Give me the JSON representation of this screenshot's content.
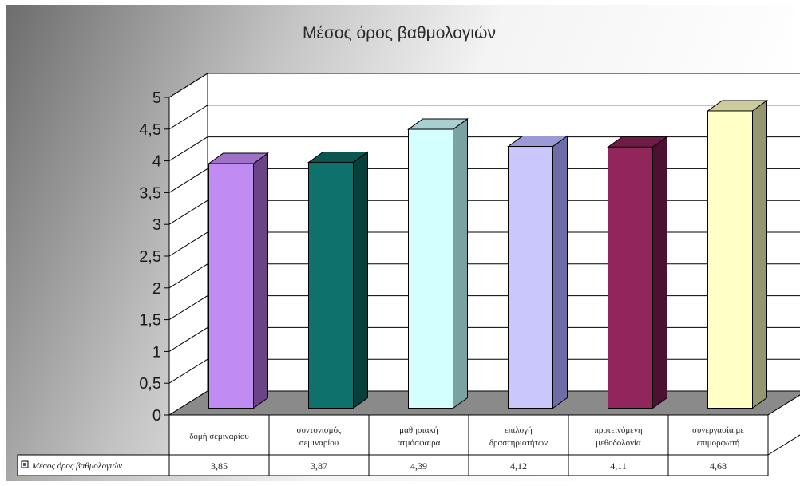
{
  "chart_data": {
    "type": "bar",
    "title": "Μέσος όρος βαθμολογιών",
    "categories": [
      [
        "δομή σεμιναρίου"
      ],
      [
        "συντονισμός",
        "σεμιναρίου"
      ],
      [
        "μαθησιακή",
        "ατμόσφαιρα"
      ],
      [
        "επιλογή",
        "δραστηριοτήτων"
      ],
      [
        "προτεινόμενη",
        "μεθοδολογία"
      ],
      [
        "συνεργασία με",
        "επιμορφωτή"
      ]
    ],
    "series": [
      {
        "name": "Μέσος όρος βαθμολογιών",
        "values": [
          3.85,
          3.87,
          4.39,
          4.12,
          4.11,
          4.68
        ],
        "value_labels": [
          "3,85",
          "3,87",
          "4,39",
          "4,12",
          "4,11",
          "4,68"
        ]
      }
    ],
    "bar_colors": [
      {
        "front": "#c08cf4",
        "side": "#6b4488",
        "top": "#9e72c6"
      },
      {
        "front": "#0f716b",
        "side": "#063f3b",
        "top": "#0b5650"
      },
      {
        "front": "#d4ffff",
        "side": "#7aa2a2",
        "top": "#a9d0d0"
      },
      {
        "front": "#c9c7fb",
        "side": "#6f6da8",
        "top": "#9c9ad6"
      },
      {
        "front": "#93255d",
        "side": "#4c1030",
        "top": "#6e1b45"
      },
      {
        "front": "#ffffc6",
        "side": "#97976f",
        "top": "#cccc9a"
      }
    ],
    "ylim": [
      0,
      5
    ],
    "yticks": [
      "0",
      "0,5",
      "1",
      "1,5",
      "2",
      "2,5",
      "3",
      "3,5",
      "4",
      "4,5",
      "5"
    ],
    "grid": true,
    "legend": "data-table"
  }
}
